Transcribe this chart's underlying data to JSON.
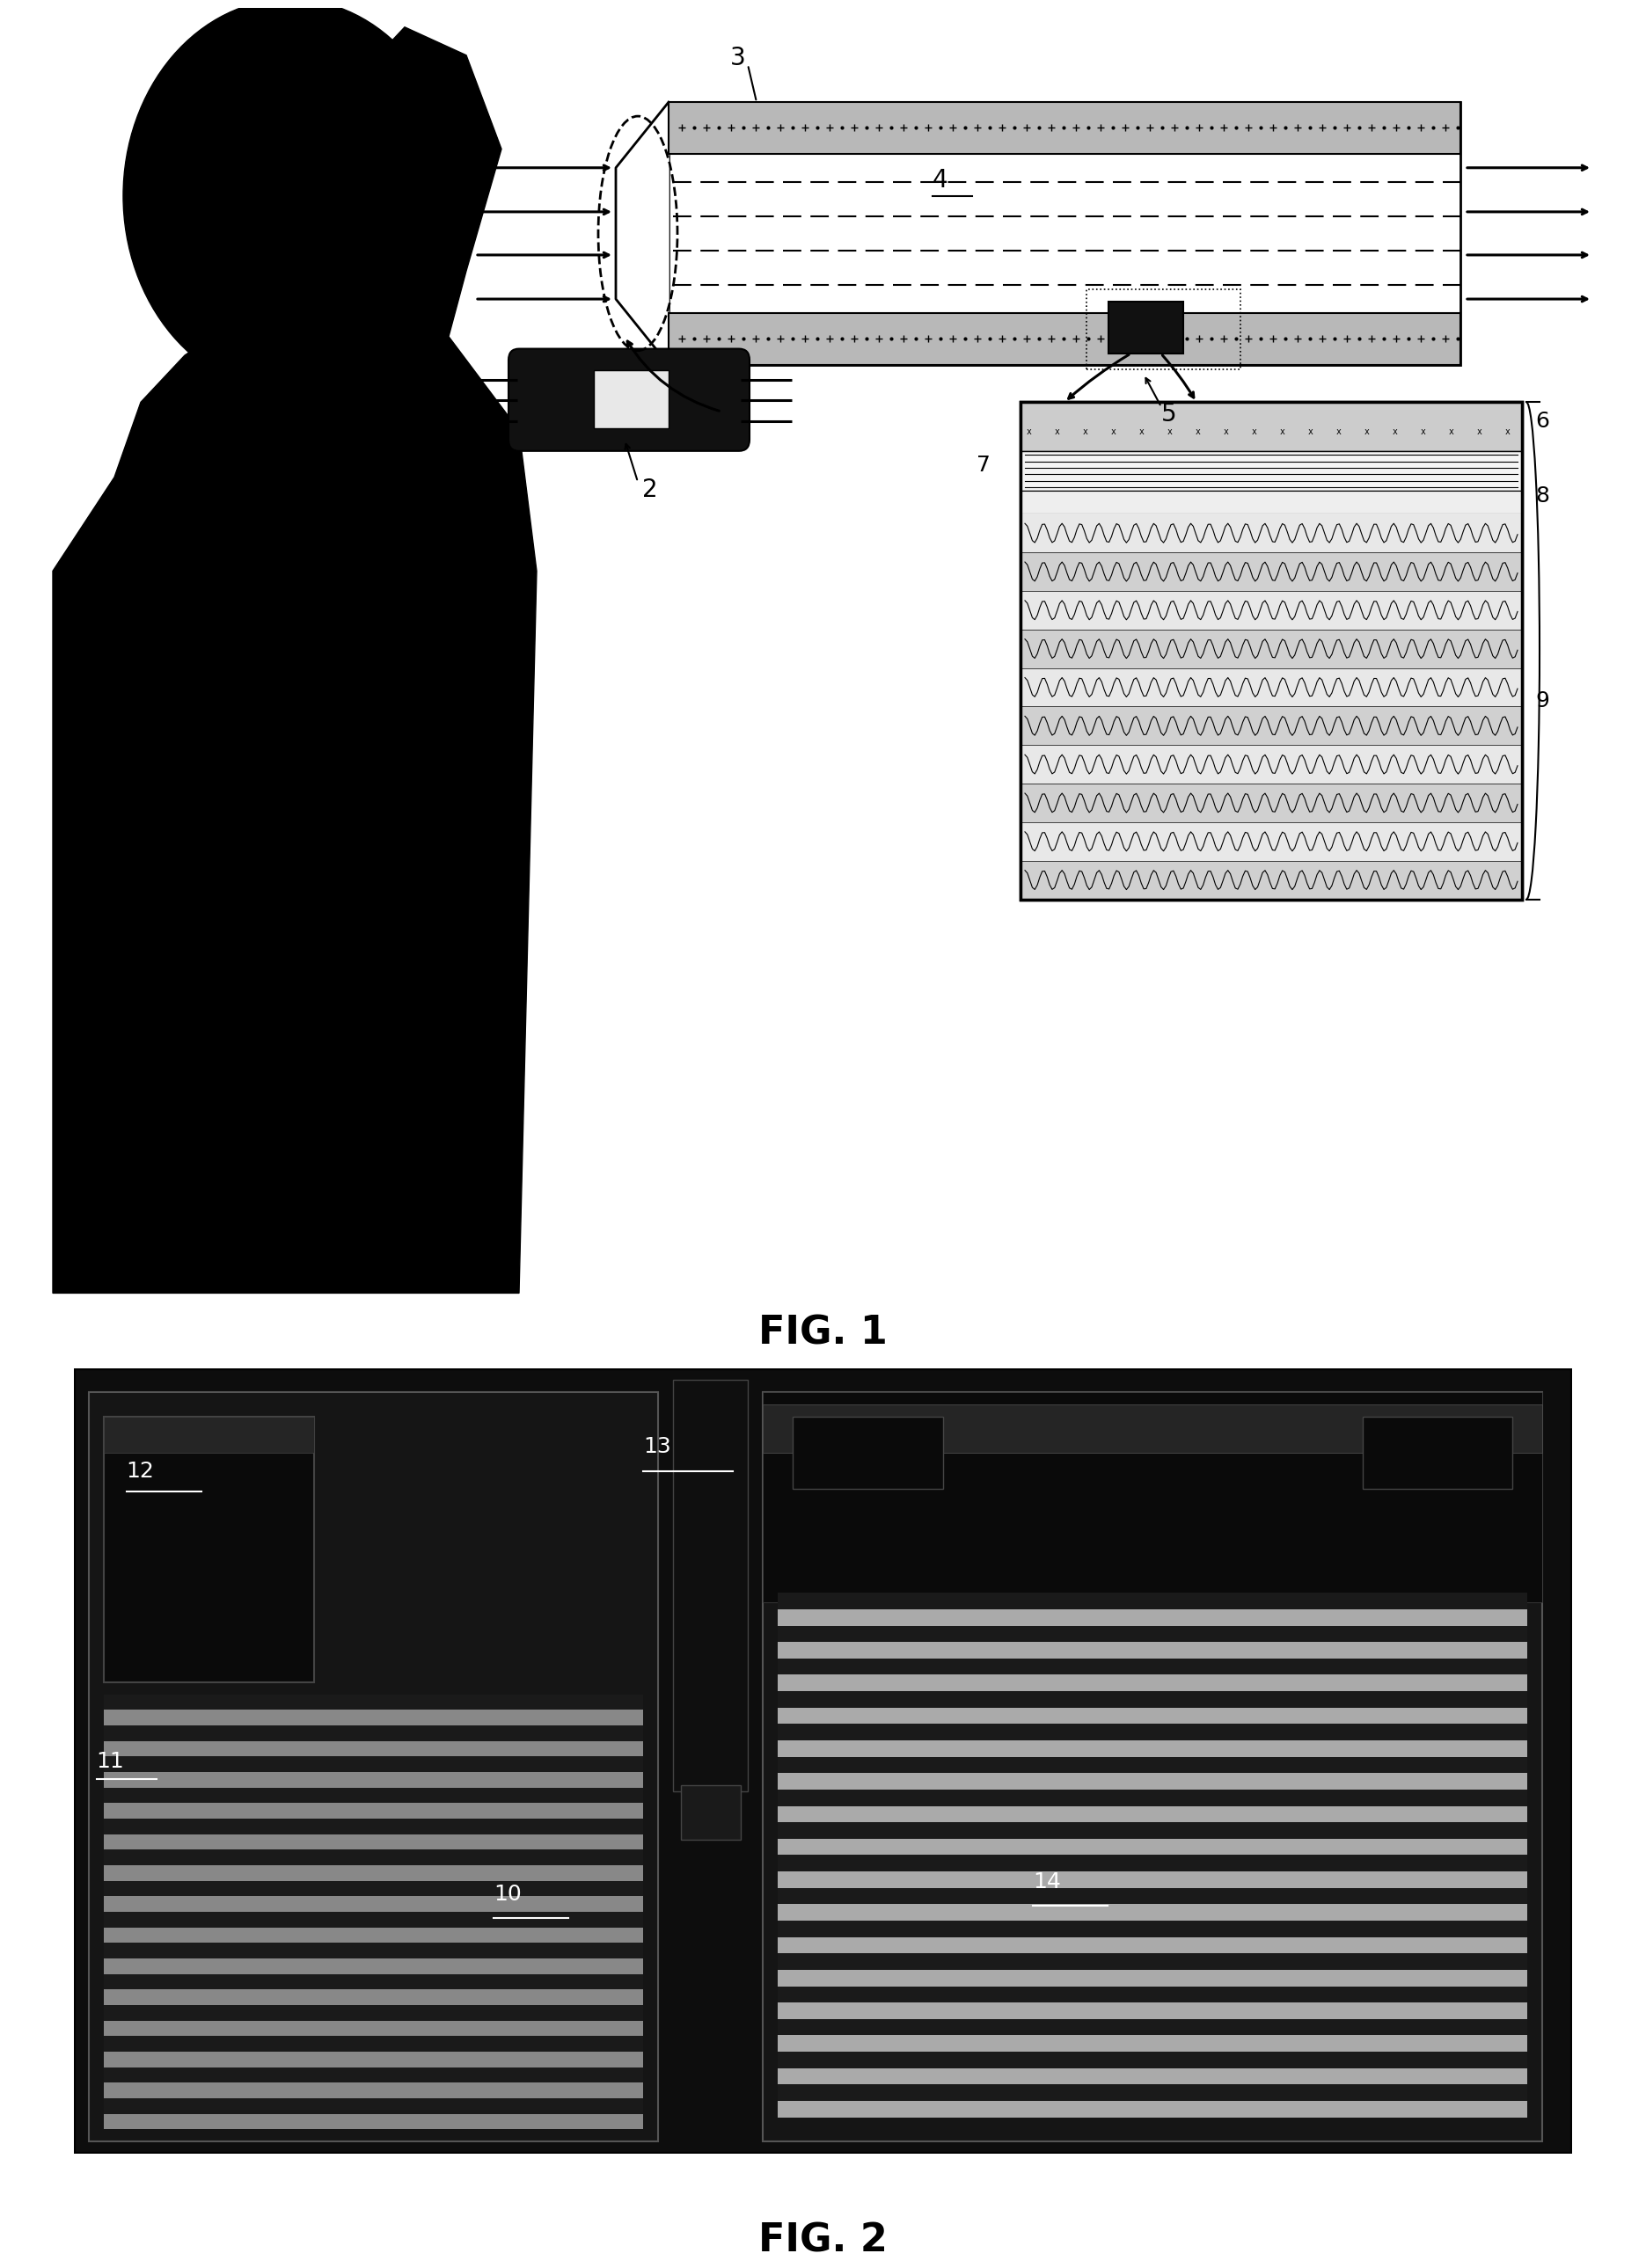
{
  "fig_width": 18.51,
  "fig_height": 26.66,
  "background_color": "#ffffff",
  "fig1_title": "FIG. 1",
  "fig2_title": "FIG. 2"
}
